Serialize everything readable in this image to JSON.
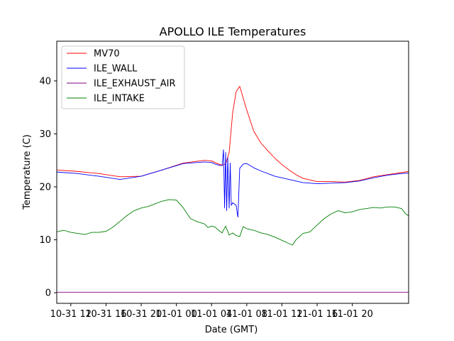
{
  "chart_data": {
    "type": "line",
    "title": "APOLLO ILE Temperatures",
    "xlabel": "Date (GMT)",
    "ylabel": "Temperature (C)",
    "xlim": [
      6,
      106
    ],
    "ylim": [
      -2,
      47.5
    ],
    "x_unit": "hours since 10-31 00:00 GMT",
    "x_ticks": [
      {
        "value": 10,
        "label": "10-31 12"
      },
      {
        "value": 20,
        "label": "10-31 16"
      },
      {
        "value": 30,
        "label": "10-31 20"
      },
      {
        "value": 40,
        "label": "11-01 00"
      },
      {
        "value": 50,
        "label": "11-01 04"
      },
      {
        "value": 60,
        "label": "11-01 08"
      },
      {
        "value": 70,
        "label": "11-01 12"
      },
      {
        "value": 80,
        "label": "11-01 16"
      },
      {
        "value": 90,
        "label": "11-01 20"
      }
    ],
    "y_ticks": [
      {
        "value": 0,
        "label": "0"
      },
      {
        "value": 10,
        "label": "10"
      },
      {
        "value": 20,
        "label": "20"
      },
      {
        "value": 30,
        "label": "30"
      },
      {
        "value": 40,
        "label": "40"
      }
    ],
    "legend_position": "top-left",
    "series": [
      {
        "name": "MV70",
        "color": "#ff0000",
        "x": [
          6,
          12,
          18,
          24,
          30,
          36,
          42,
          48,
          50,
          51,
          52,
          53,
          54,
          55,
          56,
          57,
          58,
          60,
          62,
          64,
          66,
          68,
          70,
          72,
          74,
          76,
          80,
          84,
          88,
          92,
          96,
          100,
          104,
          106
        ],
        "y": [
          23.2,
          22.9,
          22.5,
          21.9,
          22.0,
          23.2,
          24.5,
          25.0,
          24.9,
          24.6,
          24.3,
          24.1,
          24.3,
          26.5,
          34.0,
          38.0,
          39.0,
          34.5,
          30.5,
          28.3,
          26.8,
          25.4,
          24.2,
          23.2,
          22.3,
          21.6,
          21.0,
          21.0,
          20.9,
          21.2,
          21.9,
          22.3,
          22.7,
          22.9
        ]
      },
      {
        "name": "ILE_WALL",
        "color": "#0000ff",
        "x": [
          6,
          12,
          18,
          24,
          30,
          36,
          42,
          48,
          50,
          51,
          52,
          53,
          53.4,
          53.7,
          54,
          54.3,
          54.6,
          55,
          55.3,
          55.6,
          56,
          57,
          57.3,
          57.5,
          58,
          59,
          60,
          62,
          64,
          68,
          72,
          76,
          80,
          84,
          88,
          92,
          96,
          100,
          104,
          106
        ],
        "y": [
          22.8,
          22.5,
          22.0,
          21.4,
          22.0,
          23.2,
          24.4,
          24.7,
          24.6,
          24.3,
          24.1,
          24.0,
          27.0,
          16.0,
          26.5,
          15.5,
          25.5,
          16.0,
          24.5,
          16.5,
          17.0,
          16.5,
          15.0,
          14.3,
          23.5,
          24.3,
          24.4,
          23.6,
          23.0,
          22.0,
          21.4,
          20.8,
          20.6,
          20.7,
          20.8,
          21.1,
          21.7,
          22.2,
          22.5,
          22.6
        ]
      },
      {
        "name": "ILE_EXHAUST_AIR",
        "color": "#800080",
        "x": [
          6,
          106
        ],
        "y": [
          0.1,
          0.1
        ]
      },
      {
        "name": "ILE_INTAKE",
        "color": "#008000",
        "x": [
          6,
          8,
          10,
          12,
          14,
          16,
          18,
          20,
          22,
          24,
          26,
          28,
          30,
          32,
          34,
          36,
          38,
          40,
          42,
          44,
          46,
          48,
          49,
          50,
          51,
          52,
          53,
          54,
          55,
          56,
          57,
          58,
          59,
          60,
          62,
          64,
          66,
          68,
          70,
          72,
          73,
          74,
          76,
          78,
          80,
          82,
          84,
          86,
          88,
          90,
          92,
          94,
          96,
          98,
          100,
          102,
          104,
          105,
          106
        ],
        "y": [
          11.5,
          11.8,
          11.4,
          11.2,
          11.0,
          11.4,
          11.4,
          11.6,
          12.4,
          13.5,
          14.6,
          15.5,
          16.0,
          16.3,
          16.8,
          17.3,
          17.6,
          17.5,
          16.0,
          14.0,
          13.4,
          13.0,
          12.3,
          12.6,
          12.4,
          11.8,
          11.3,
          12.6,
          10.9,
          11.3,
          10.8,
          10.6,
          12.5,
          12.1,
          11.8,
          11.3,
          11.0,
          10.5,
          9.9,
          9.3,
          9.0,
          10.0,
          11.2,
          11.5,
          12.8,
          14.0,
          14.9,
          15.5,
          15.1,
          15.3,
          15.7,
          15.9,
          16.1,
          16.0,
          16.2,
          16.2,
          15.9,
          15.0,
          14.5
        ]
      }
    ]
  }
}
